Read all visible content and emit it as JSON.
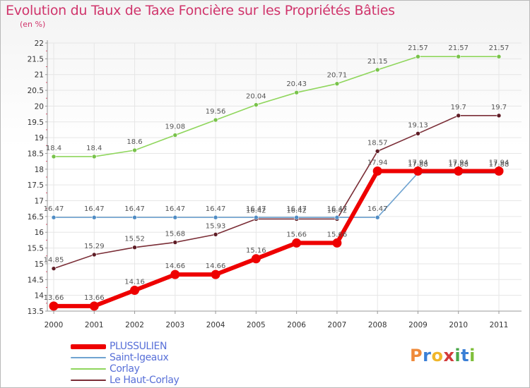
{
  "title": "Evolution du Taux de Taxe Foncière sur les Propriétés Bâties",
  "unit": "(en %)",
  "logo": {
    "text": "Proxiti",
    "letters": [
      "P",
      "r",
      "o",
      "x",
      "i",
      "t",
      "i"
    ],
    "colors": [
      "#ef8a3a",
      "#3a7fd6",
      "#f0b62b",
      "#d23a3a",
      "#4aa84a",
      "#3a7fd6",
      "#7fbf3a"
    ]
  },
  "chart_data": {
    "type": "line",
    "title": "Evolution du Taux de Taxe Foncière sur les Propriétés Bâties",
    "ylabel": "(en %)",
    "xlabel": "",
    "ylim": [
      13.5,
      22
    ],
    "yticks": [
      "13.5",
      "14",
      "14.5",
      "15",
      "15.5",
      "16",
      "16.5",
      "17",
      "17.5",
      "18",
      "18.5",
      "19",
      "19.5",
      "20",
      "20.5",
      "21",
      "21.5",
      "22"
    ],
    "categories": [
      "2000",
      "2001",
      "2002",
      "2003",
      "2004",
      "2005",
      "2006",
      "2007",
      "2008",
      "2009",
      "2010",
      "2011"
    ],
    "series": [
      {
        "name": "Corlay",
        "color": "#8fd65c",
        "dot": "#78c24a",
        "values": [
          18.4,
          18.4,
          18.6,
          19.08,
          19.56,
          20.04,
          20.43,
          20.71,
          21.15,
          21.57,
          21.57,
          21.57
        ],
        "labels": [
          "18.4",
          "18.4",
          "18.6",
          "19.08",
          "19.56",
          "20.04",
          "20.43",
          "20.71",
          "21.15",
          "21.57",
          "21.57",
          "21.57"
        ]
      },
      {
        "name": "Le Haut-Corlay",
        "color": "#7a2d36",
        "dot": "#5e1c25",
        "values": [
          14.85,
          15.29,
          15.52,
          15.68,
          15.93,
          16.42,
          16.42,
          16.42,
          18.57,
          19.13,
          19.7,
          19.7
        ],
        "labels": [
          "14.85",
          "15.29",
          "15.52",
          "15.68",
          "15.93",
          "16.42",
          "16.42",
          "16.42",
          "18.57",
          "19.13",
          "19.7",
          "19.7"
        ]
      },
      {
        "name": "Saint-Igeaux",
        "color": "#6fa3d0",
        "dot": "#4f8cc4",
        "values": [
          16.47,
          16.47,
          16.47,
          16.47,
          16.47,
          16.47,
          16.47,
          16.47,
          16.47,
          17.88,
          17.88,
          17.88
        ],
        "labels": [
          "16.47",
          "16.47",
          "16.47",
          "16.47",
          "16.47",
          "16.47",
          "16.47",
          "16.47",
          "16.47",
          "17.88",
          "17.88",
          "17.88"
        ]
      },
      {
        "name": "PLUSSULIEN",
        "color": "#ee0000",
        "dot": "#ee0000",
        "values": [
          13.66,
          13.66,
          14.16,
          14.66,
          14.66,
          15.16,
          15.66,
          15.66,
          17.94,
          17.94,
          17.94,
          17.94
        ],
        "labels": [
          "13.66",
          "13.66",
          "14.16",
          "14.66",
          "14.66",
          "15.16",
          "15.66",
          "15.66",
          "17.94",
          "17.94",
          "17.94",
          "17.94"
        ]
      }
    ],
    "legend": {
      "position": "bottom-left",
      "order": [
        "PLUSSULIEN",
        "Saint-Igeaux",
        "Corlay",
        "Le Haut-Corlay"
      ]
    }
  }
}
